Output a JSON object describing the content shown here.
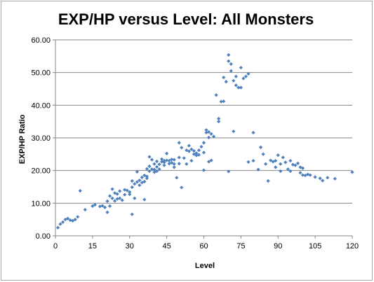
{
  "chart_data": {
    "type": "scatter",
    "title": "EXP/HP versus Level: All Monsters",
    "xlabel": "Level",
    "ylabel": "EXP/HP Ratio",
    "xlim": [
      0,
      120
    ],
    "ylim": [
      0,
      60
    ],
    "x_ticks": [
      0,
      15,
      30,
      45,
      60,
      75,
      90,
      105,
      120
    ],
    "y_ticks": [
      0,
      10,
      20,
      30,
      40,
      50,
      60
    ],
    "x_tick_labels": [
      "0",
      "15",
      "30",
      "45",
      "60",
      "75",
      "90",
      "105",
      "120"
    ],
    "y_tick_labels": [
      "0.00",
      "10.00",
      "20.00",
      "30.00",
      "40.00",
      "50.00",
      "60.00"
    ],
    "grid": "horizontal",
    "legend": "none",
    "marker_color": "#4f81bd",
    "series": [
      {
        "points": [
          [
            1,
            2.5
          ],
          [
            2,
            3.6
          ],
          [
            3,
            4.2
          ],
          [
            4,
            5.0
          ],
          [
            5,
            5.3
          ],
          [
            6,
            4.8
          ],
          [
            7,
            4.6
          ],
          [
            8,
            5.0
          ],
          [
            9,
            5.8
          ],
          [
            10,
            13.8
          ],
          [
            12,
            8.0
          ],
          [
            15,
            9.1
          ],
          [
            16,
            9.5
          ],
          [
            18,
            9.0
          ],
          [
            19,
            9.2
          ],
          [
            20,
            8.7
          ],
          [
            21,
            10.6
          ],
          [
            21,
            7.2
          ],
          [
            22,
            9.1
          ],
          [
            22,
            12.2
          ],
          [
            23,
            11.5
          ],
          [
            23,
            14.3
          ],
          [
            24,
            10.7
          ],
          [
            24,
            13.1
          ],
          [
            25,
            11.3
          ],
          [
            25,
            12.8
          ],
          [
            26,
            11.5
          ],
          [
            26,
            13.7
          ],
          [
            27,
            10.9
          ],
          [
            28,
            12.6
          ],
          [
            28,
            14.1
          ],
          [
            29,
            13.9
          ],
          [
            30,
            13.4
          ],
          [
            30,
            12.7
          ],
          [
            31,
            6.6
          ],
          [
            31,
            14.9
          ],
          [
            31,
            16.8
          ],
          [
            32,
            15.9
          ],
          [
            32,
            11.5
          ],
          [
            33,
            16.5
          ],
          [
            33,
            19.6
          ],
          [
            34,
            15.5
          ],
          [
            34,
            17.0
          ],
          [
            35,
            16.3
          ],
          [
            35,
            17.9
          ],
          [
            36,
            16.6
          ],
          [
            36,
            18.5
          ],
          [
            36,
            11.1
          ],
          [
            37,
            17.6
          ],
          [
            37,
            18.2
          ],
          [
            37,
            20.5
          ],
          [
            38,
            19.8
          ],
          [
            38,
            21.3
          ],
          [
            38,
            24.2
          ],
          [
            39,
            20.4
          ],
          [
            39,
            23.3
          ],
          [
            40,
            19.5
          ],
          [
            40,
            22.0
          ],
          [
            40,
            20.3
          ],
          [
            41,
            19.8
          ],
          [
            41,
            21.1
          ],
          [
            41,
            22.8
          ],
          [
            42,
            20.4
          ],
          [
            42,
            21.9
          ],
          [
            43,
            22.7
          ],
          [
            43,
            23.5
          ],
          [
            44,
            23.0
          ],
          [
            44,
            21.6
          ],
          [
            44,
            22.5
          ],
          [
            45,
            25.2
          ],
          [
            45,
            23.1
          ],
          [
            46,
            23.0
          ],
          [
            46,
            22.1
          ],
          [
            47,
            22.4
          ],
          [
            47,
            23.4
          ],
          [
            48,
            21.0
          ],
          [
            48,
            22.0
          ],
          [
            48,
            23.3
          ],
          [
            49,
            17.8
          ],
          [
            50,
            28.5
          ],
          [
            50,
            24.0
          ],
          [
            50,
            22.1
          ],
          [
            51,
            14.8
          ],
          [
            51,
            27.0
          ],
          [
            52,
            23.8
          ],
          [
            53,
            22.0
          ],
          [
            53,
            26.2
          ],
          [
            54,
            25.9
          ],
          [
            54,
            27.6
          ],
          [
            55,
            26.5
          ],
          [
            55,
            23.0
          ],
          [
            56,
            25.0
          ],
          [
            56,
            26.0
          ],
          [
            57,
            25.3
          ],
          [
            57,
            24.6
          ],
          [
            58,
            24.8
          ],
          [
            58,
            26.2
          ],
          [
            59,
            27.3
          ],
          [
            60,
            25.5
          ],
          [
            60,
            28.5
          ],
          [
            60,
            20.1
          ],
          [
            61,
            32.4
          ],
          [
            61,
            31.6
          ],
          [
            62,
            31.8
          ],
          [
            62,
            22.7
          ],
          [
            62,
            30.1
          ],
          [
            63,
            23.1
          ],
          [
            63,
            31.2
          ],
          [
            64,
            30.4
          ],
          [
            65,
            43.1
          ],
          [
            66,
            35.9
          ],
          [
            66,
            35.0
          ],
          [
            67,
            41.1
          ],
          [
            68,
            41.2
          ],
          [
            68,
            48.5
          ],
          [
            69,
            47.2
          ],
          [
            70,
            55.4
          ],
          [
            70,
            53.5
          ],
          [
            70,
            19.7
          ],
          [
            71,
            52.6
          ],
          [
            71,
            50.5
          ],
          [
            72,
            47.5
          ],
          [
            72,
            32.0
          ],
          [
            73,
            46.1
          ],
          [
            73,
            48.8
          ],
          [
            74,
            45.4
          ],
          [
            75,
            51.5
          ],
          [
            75,
            45.4
          ],
          [
            76,
            48.2
          ],
          [
            77,
            48.8
          ],
          [
            78,
            49.6
          ],
          [
            78,
            22.6
          ],
          [
            80,
            31.6
          ],
          [
            80,
            23.0
          ],
          [
            82,
            20.3
          ],
          [
            83,
            27.1
          ],
          [
            84,
            25.0
          ],
          [
            85,
            22.0
          ],
          [
            86,
            16.8
          ],
          [
            87,
            23.1
          ],
          [
            88,
            22.7
          ],
          [
            89,
            21.0
          ],
          [
            89,
            23.0
          ],
          [
            90,
            24.7
          ],
          [
            91,
            22.0
          ],
          [
            91,
            19.8
          ],
          [
            92,
            24.0
          ],
          [
            93,
            22.5
          ],
          [
            94,
            20.4
          ],
          [
            95,
            23.0
          ],
          [
            95,
            19.8
          ],
          [
            96,
            21.8
          ],
          [
            97,
            21.6
          ],
          [
            98,
            22.2
          ],
          [
            99,
            21.0
          ],
          [
            99,
            19.3
          ],
          [
            100,
            20.7
          ],
          [
            100,
            18.6
          ],
          [
            101,
            18.5
          ],
          [
            102,
            18.8
          ],
          [
            103,
            18.6
          ],
          [
            105,
            18.0
          ],
          [
            107,
            17.6
          ],
          [
            108,
            16.9
          ],
          [
            110,
            17.8
          ],
          [
            113,
            17.5
          ],
          [
            120,
            19.5
          ]
        ]
      }
    ]
  }
}
